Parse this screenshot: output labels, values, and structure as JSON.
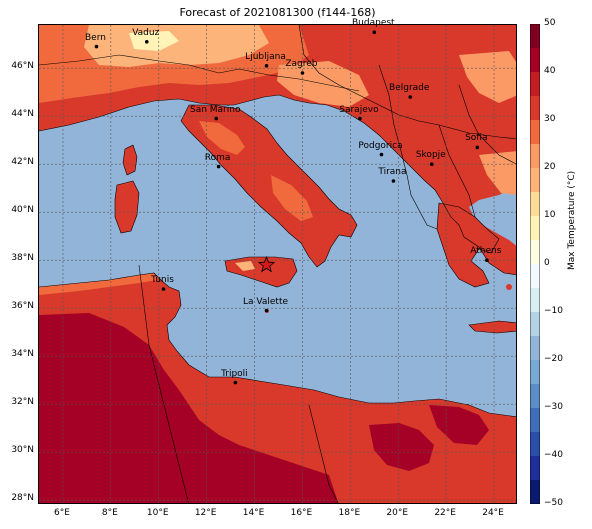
{
  "title": "Forecast of 2021081300 (f144-168)",
  "map": {
    "lon_range": [
      5,
      25
    ],
    "lat_range": [
      27.8,
      47.8
    ],
    "lon_ticks": [
      "6°E",
      "8°E",
      "10°E",
      "12°E",
      "14°E",
      "16°E",
      "18°E",
      "20°E",
      "22°E",
      "24°E"
    ],
    "lon_tick_values": [
      6,
      8,
      10,
      12,
      14,
      16,
      18,
      20,
      22,
      24
    ],
    "lat_ticks": [
      "28°N",
      "30°N",
      "32°N",
      "34°N",
      "36°N",
      "38°N",
      "40°N",
      "42°N",
      "44°N",
      "46°N"
    ],
    "lat_tick_values": [
      28,
      30,
      32,
      34,
      36,
      38,
      40,
      42,
      44,
      46
    ],
    "gridlines": true,
    "sea_color": "#92b4d8",
    "star_marker": {
      "lon": 14.5,
      "lat": 37.8,
      "color": "#d7191c"
    }
  },
  "cities": [
    {
      "name": "Bern",
      "lon": 7.4,
      "lat": 46.9
    },
    {
      "name": "Vaduz",
      "lon": 9.5,
      "lat": 47.1
    },
    {
      "name": "Budapest",
      "lon": 19.0,
      "lat": 47.5
    },
    {
      "name": "Ljubljana",
      "lon": 14.5,
      "lat": 46.1
    },
    {
      "name": "Zagreb",
      "lon": 16.0,
      "lat": 45.8
    },
    {
      "name": "Belgrade",
      "lon": 20.5,
      "lat": 44.8
    },
    {
      "name": "San Marino",
      "lon": 12.4,
      "lat": 43.9
    },
    {
      "name": "Sarajevo",
      "lon": 18.4,
      "lat": 43.9
    },
    {
      "name": "Sofia",
      "lon": 23.3,
      "lat": 42.7
    },
    {
      "name": "Podgorica",
      "lon": 19.3,
      "lat": 42.4
    },
    {
      "name": "Skopje",
      "lon": 21.4,
      "lat": 42.0
    },
    {
      "name": "Roma",
      "lon": 12.5,
      "lat": 41.9
    },
    {
      "name": "Tirana",
      "lon": 19.8,
      "lat": 41.3
    },
    {
      "name": "Athens",
      "lon": 23.7,
      "lat": 38.0
    },
    {
      "name": "Tunis",
      "lon": 10.2,
      "lat": 36.8
    },
    {
      "name": "La Valette",
      "lon": 14.5,
      "lat": 35.9
    },
    {
      "name": "Tripoli",
      "lon": 13.2,
      "lat": 32.9
    }
  ],
  "colorbar": {
    "label": "Max Temperature (°C)",
    "range": [
      -50,
      50
    ],
    "ticks": [
      "50",
      "40",
      "30",
      "20",
      "10",
      "0",
      "−10",
      "−20",
      "−30",
      "−40",
      "−50"
    ],
    "tick_values": [
      50,
      40,
      30,
      20,
      10,
      0,
      -10,
      -20,
      -30,
      -40,
      -50
    ],
    "levels": [
      {
        "from": -50,
        "to": -45,
        "color": "#0a1a70"
      },
      {
        "from": -45,
        "to": -40,
        "color": "#1c2f9a"
      },
      {
        "from": -40,
        "to": -35,
        "color": "#2b4ea8"
      },
      {
        "from": -35,
        "to": -30,
        "color": "#3f6fb8"
      },
      {
        "from": -30,
        "to": -25,
        "color": "#5a8cc6"
      },
      {
        "from": -25,
        "to": -20,
        "color": "#7aa8d4"
      },
      {
        "from": -20,
        "to": -15,
        "color": "#92b4d8"
      },
      {
        "from": -15,
        "to": -10,
        "color": "#b4d4e6"
      },
      {
        "from": -10,
        "to": -5,
        "color": "#d7eef2"
      },
      {
        "from": -5,
        "to": 0,
        "color": "#f2fafd"
      },
      {
        "from": 0,
        "to": 5,
        "color": "#fffde4"
      },
      {
        "from": 5,
        "to": 10,
        "color": "#fff3b8"
      },
      {
        "from": 10,
        "to": 15,
        "color": "#fddc9a"
      },
      {
        "from": 15,
        "to": 20,
        "color": "#fcb47a"
      },
      {
        "from": 20,
        "to": 25,
        "color": "#fb9a64"
      },
      {
        "from": 25,
        "to": 30,
        "color": "#f06a3e"
      },
      {
        "from": 30,
        "to": 35,
        "color": "#d8392a"
      },
      {
        "from": 35,
        "to": 40,
        "color": "#c31f22"
      },
      {
        "from": 40,
        "to": 45,
        "color": "#a50026"
      },
      {
        "from": 45,
        "to": 50,
        "color": "#7f0020"
      }
    ]
  }
}
